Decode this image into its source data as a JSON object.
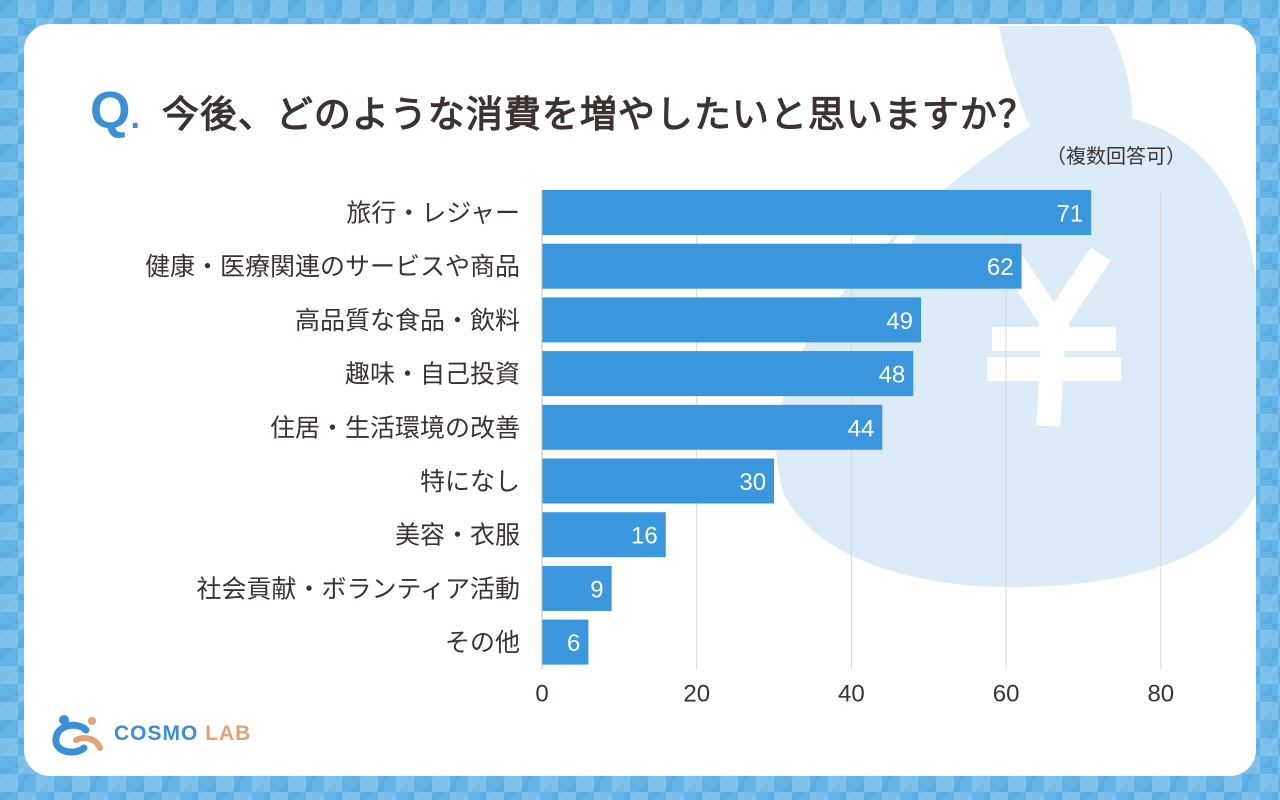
{
  "header": {
    "q_mark": "Q",
    "q_dot": ".",
    "title": "今後、どのような消費を増やしたいと思いますか？",
    "note": "（複数回答可）"
  },
  "logo": {
    "part1": "COSMO",
    "part2": "LAB"
  },
  "colors": {
    "bar": "#3a96dd",
    "accent": "#3a8fd6",
    "logo_orange": "#e3a277",
    "bag": "#dcebf8",
    "text": "#3a3331"
  },
  "chart_data": {
    "type": "bar",
    "orientation": "horizontal",
    "title": "今後、どのような消費を増やしたいと思いますか？",
    "subtitle": "（複数回答可）",
    "categories": [
      "旅行・レジャー",
      "健康・医療関連のサービスや商品",
      "高品質な食品・飲料",
      "趣味・自己投資",
      "住居・生活環境の改善",
      "特になし",
      "美容・衣服",
      "社会貢献・ボランティア活動",
      "その他"
    ],
    "values": [
      71,
      62,
      49,
      48,
      44,
      30,
      16,
      9,
      6
    ],
    "xlim": [
      0,
      80
    ],
    "xticks": [
      0,
      20,
      40,
      60,
      80
    ],
    "grid": true,
    "data_labels": true
  }
}
